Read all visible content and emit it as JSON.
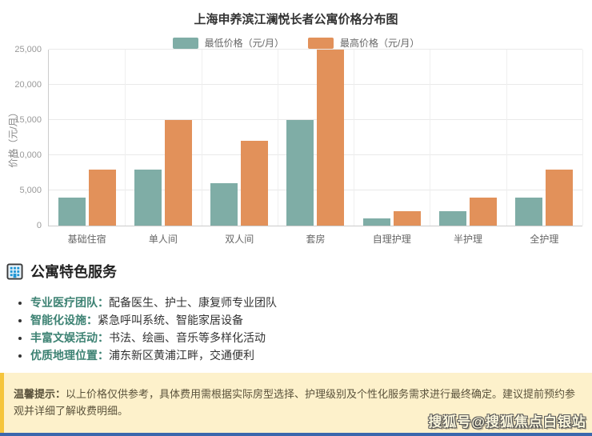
{
  "chart_data": {
    "type": "bar",
    "title": "上海申养滨江澜悦长者公寓价格分布图",
    "categories": [
      "基础住宿",
      "单人间",
      "双人间",
      "套房",
      "自理护理",
      "半护理",
      "全护理"
    ],
    "series": [
      {
        "name": "最低价格（元/月）",
        "color": "#7fada6",
        "values": [
          4000,
          8000,
          6000,
          15000,
          1000,
          2000,
          4000
        ]
      },
      {
        "name": "最高价格（元/月）",
        "color": "#e2915a",
        "values": [
          8000,
          15000,
          12000,
          25000,
          2000,
          4000,
          8000
        ]
      }
    ],
    "xlabel": "",
    "ylabel": "价格（元/月）",
    "ylim": [
      0,
      25000
    ],
    "yticks": [
      0,
      5000,
      10000,
      15000,
      20000,
      25000
    ],
    "ytick_labels": [
      "0",
      "5,000",
      "10,000",
      "15,000",
      "20,000",
      "25,000"
    ],
    "grid": true,
    "legend_position": "top"
  },
  "features": {
    "icon": "building-icon",
    "heading": "公寓特色服务",
    "items": [
      {
        "term": "专业医疗团队：",
        "desc": "配备医生、护士、康复师专业团队"
      },
      {
        "term": "智能化设施：",
        "desc": "紧急呼叫系统、智能家居设备"
      },
      {
        "term": "丰富文娱活动：",
        "desc": "书法、绘画、音乐等多样化活动"
      },
      {
        "term": "优质地理位置：",
        "desc": "浦东新区黄浦江畔，交通便利"
      }
    ]
  },
  "notice": {
    "label": "温馨提示：",
    "text": "以上价格仅供参考，具体费用需根据实际房型选择、护理级别及个性化服务需求进行最终确定。建议提前预约参观并详细了解收费明细。"
  },
  "watermark": {
    "text": "搜狐号@搜狐焦点白银站"
  },
  "colors": {
    "bar_min": "#7fada6",
    "bar_max": "#e2915a",
    "feature_term": "#3d8273",
    "notice_bg": "#fdf1cb",
    "notice_border": "#f5c53c",
    "bottom_bar": "#3a67ad"
  }
}
